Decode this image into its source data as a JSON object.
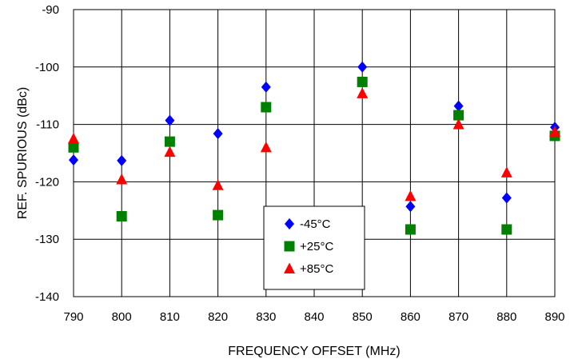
{
  "chart_data": {
    "type": "scatter",
    "xlabel": "FREQUENCY OFFSET (MHz)",
    "ylabel": "REF. SPURIOUS (dBc)",
    "xlim": [
      790,
      890
    ],
    "ylim": [
      -140,
      -90
    ],
    "xticks": [
      "790",
      "800",
      "810",
      "820",
      "830",
      "840",
      "850",
      "860",
      "870",
      "880",
      "890"
    ],
    "yticks": [
      "-90",
      "-100",
      "-110",
      "-120",
      "-130",
      "-140"
    ],
    "grid": true,
    "legend_position": "bottom-center",
    "series": [
      {
        "name": "-45°C",
        "marker": "diamond",
        "color": "#0000ff",
        "points": [
          [
            790,
            -116.2
          ],
          [
            800,
            -116.3
          ],
          [
            810,
            -109.3
          ],
          [
            820,
            -111.6
          ],
          [
            830,
            -103.5
          ],
          [
            850,
            -100.0
          ],
          [
            860,
            -124.3
          ],
          [
            870,
            -106.8
          ],
          [
            880,
            -122.8
          ],
          [
            890,
            -110.5
          ]
        ]
      },
      {
        "name": "+25°C",
        "marker": "square",
        "color": "#008000",
        "points": [
          [
            790,
            -114.0
          ],
          [
            800,
            -126.0
          ],
          [
            810,
            -113.0
          ],
          [
            820,
            -125.8
          ],
          [
            830,
            -107.0
          ],
          [
            850,
            -102.6
          ],
          [
            860,
            -128.3
          ],
          [
            870,
            -108.4
          ],
          [
            880,
            -128.3
          ],
          [
            890,
            -112.0
          ]
        ]
      },
      {
        "name": "+85°C",
        "marker": "triangle",
        "color": "#ff0000",
        "points": [
          [
            790,
            -112.5
          ],
          [
            800,
            -119.6
          ],
          [
            810,
            -114.8
          ],
          [
            820,
            -120.6
          ],
          [
            830,
            -114.0
          ],
          [
            850,
            -104.6
          ],
          [
            860,
            -122.5
          ],
          [
            870,
            -110.0
          ],
          [
            880,
            -118.4
          ],
          [
            890,
            -111.3
          ]
        ]
      }
    ]
  }
}
